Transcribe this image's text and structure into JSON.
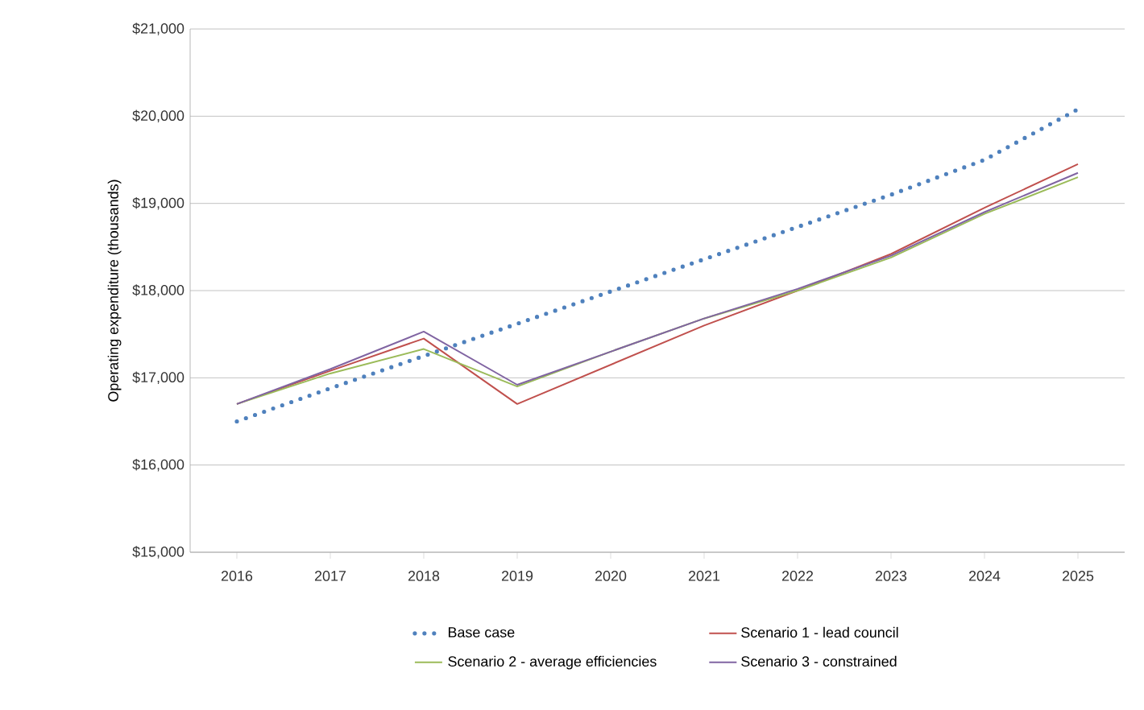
{
  "chart_data": {
    "type": "line",
    "ylabel": "Operating expenditure (thousands)",
    "categories": [
      "2016",
      "2017",
      "2018",
      "2019",
      "2020",
      "2021",
      "2022",
      "2023",
      "2024",
      "2025"
    ],
    "series": [
      {
        "name": "Base case",
        "color": "#4f81bd",
        "line_style": "dotted",
        "values": [
          16500,
          16880,
          17250,
          17620,
          17990,
          18360,
          18730,
          19100,
          19500,
          20080
        ]
      },
      {
        "name": "Scenario 1 - lead council",
        "color": "#c0504d",
        "values": [
          16700,
          17080,
          17450,
          16700,
          17150,
          17600,
          18000,
          18420,
          18950,
          19450
        ]
      },
      {
        "name": "Scenario 2 - average efficiencies",
        "color": "#9bbb59",
        "values": [
          16700,
          17050,
          17330,
          16900,
          17300,
          17680,
          18000,
          18380,
          18880,
          19300
        ]
      },
      {
        "name": "Scenario 3 - constrained",
        "color": "#8064a2",
        "values": [
          16700,
          17100,
          17530,
          16920,
          17300,
          17680,
          18020,
          18400,
          18900,
          19350
        ]
      }
    ],
    "ylim": [
      15000,
      21000
    ],
    "yticks": [
      {
        "value": 15000,
        "label": "$15,000"
      },
      {
        "value": 16000,
        "label": "$16,000"
      },
      {
        "value": 17000,
        "label": "$17,000"
      },
      {
        "value": 18000,
        "label": "$18,000"
      },
      {
        "value": 19000,
        "label": "$19,000"
      },
      {
        "value": 20000,
        "label": "$20,000"
      },
      {
        "value": 21000,
        "label": "$21,000"
      }
    ],
    "grid": "y",
    "legend": "bottom",
    "marker": "none"
  }
}
